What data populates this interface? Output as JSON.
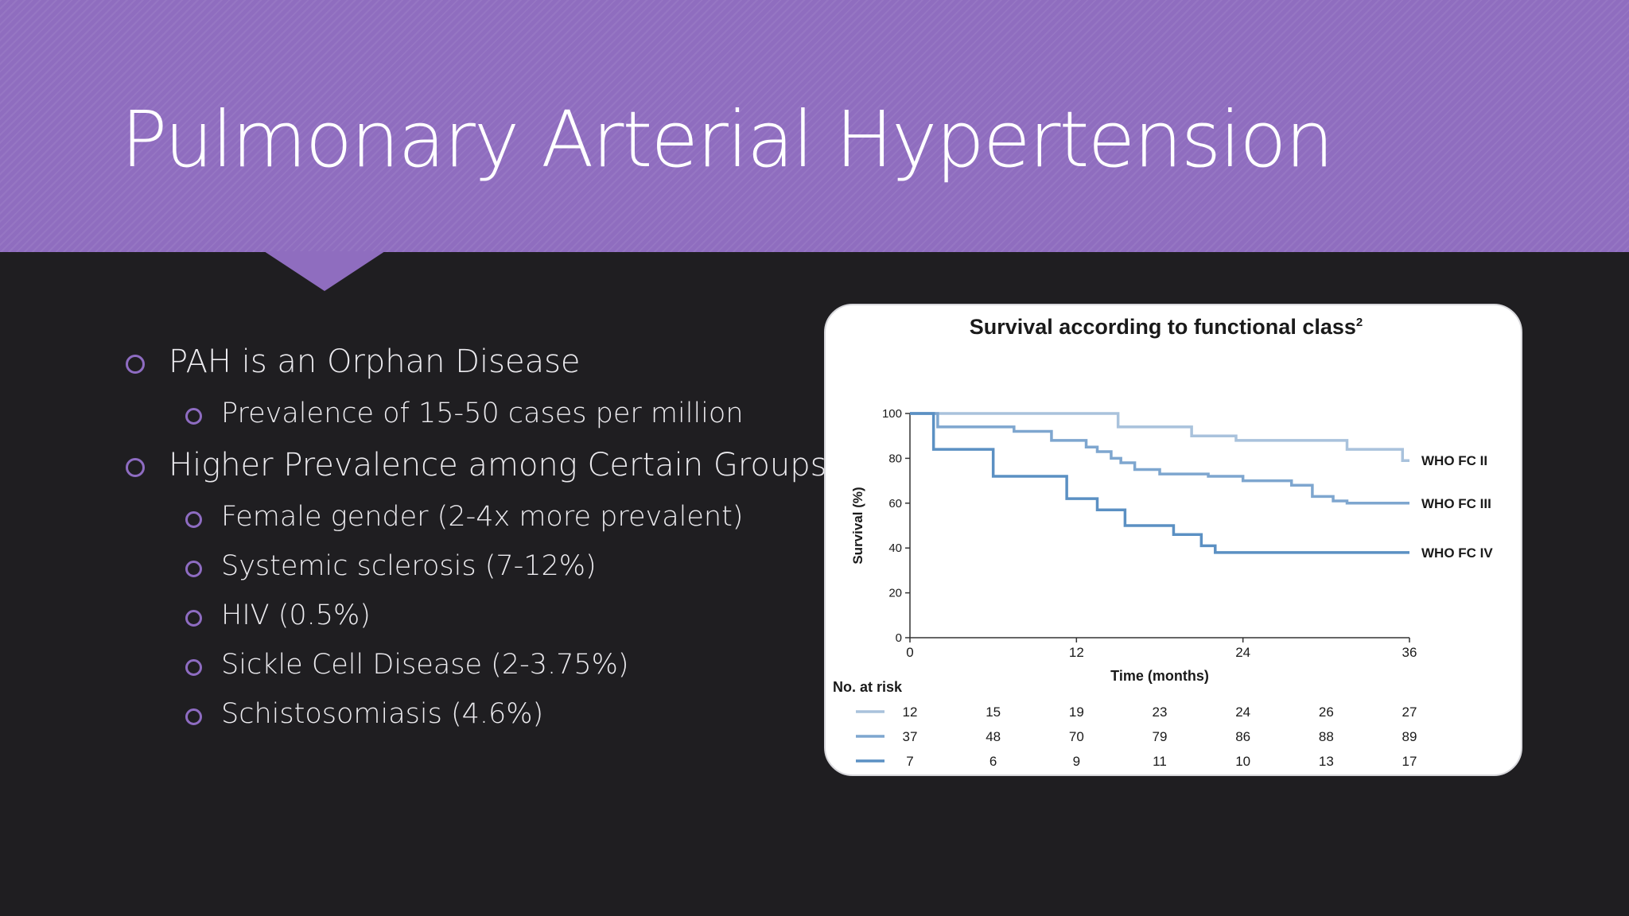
{
  "slide": {
    "title": "Pulmonary Arterial Hypertension",
    "colors": {
      "header": "#8f6dbf",
      "background": "#1f1e21",
      "bullet_marker": "#8e6cc2"
    }
  },
  "bullets": [
    {
      "level": 1,
      "text": "PAH is an Orphan Disease"
    },
    {
      "level": 2,
      "text": "Prevalence of 15-50 cases per million"
    },
    {
      "level": 1,
      "text": "Higher Prevalence among Certain Groups:"
    },
    {
      "level": 2,
      "text": "Female gender (2-4x more prevalent)"
    },
    {
      "level": 2,
      "text": "Systemic sclerosis (7-12%)"
    },
    {
      "level": 2,
      "text": "HIV (0.5%)"
    },
    {
      "level": 2,
      "text": "Sickle Cell Disease (2-3.75%)"
    },
    {
      "level": 2,
      "text": "Schistosomiasis (4.6%)"
    }
  ],
  "chart_data": {
    "type": "line",
    "title": "Survival according to functional class",
    "title_superscript": "2",
    "xlabel": "Time (months)",
    "ylabel": "Survival (%)",
    "xlim": [
      0,
      36
    ],
    "ylim": [
      0,
      100
    ],
    "xticks": [
      0,
      12,
      24,
      36
    ],
    "yticks": [
      0,
      20,
      40,
      60,
      80,
      100
    ],
    "grid": false,
    "step": true,
    "series": [
      {
        "name": "WHO FC II",
        "color": "#a9c2dc",
        "x": [
          0,
          15,
          20.3,
          23.5,
          31.5,
          35.5,
          36
        ],
        "y": [
          100,
          94,
          90,
          88,
          84,
          79,
          79
        ]
      },
      {
        "name": "WHO FC III",
        "color": "#7ea6cf",
        "x": [
          0,
          2,
          7.5,
          10.2,
          12.7,
          13.5,
          14.5,
          15.2,
          16.2,
          18,
          21.5,
          24,
          27.5,
          29,
          30.5,
          31.5,
          36
        ],
        "y": [
          100,
          94,
          92,
          88,
          85,
          83,
          80,
          78,
          75,
          73,
          72,
          70,
          68,
          63,
          61,
          60,
          60
        ]
      },
      {
        "name": "WHO FC IV",
        "color": "#5b90c3",
        "x": [
          0,
          1.7,
          6,
          11.3,
          13.5,
          15.5,
          19,
          21,
          22,
          36
        ],
        "y": [
          100,
          84,
          72,
          62,
          57,
          50,
          46,
          41,
          38,
          38
        ]
      }
    ],
    "risk_table": {
      "label": "No. at risk",
      "times": [
        0,
        6,
        12,
        18,
        24,
        30,
        36
      ],
      "rows": [
        {
          "series": "WHO FC II",
          "values": [
            "12",
            "15",
            "19",
            "23",
            "24",
            "26",
            "27"
          ]
        },
        {
          "series": "WHO FC III",
          "values": [
            "37",
            "48",
            "70",
            "79",
            "86",
            "88",
            "89"
          ]
        },
        {
          "series": "WHO FC IV",
          "values": [
            "7",
            "6",
            "9",
            "11",
            "10",
            "13",
            "17"
          ]
        }
      ]
    }
  }
}
